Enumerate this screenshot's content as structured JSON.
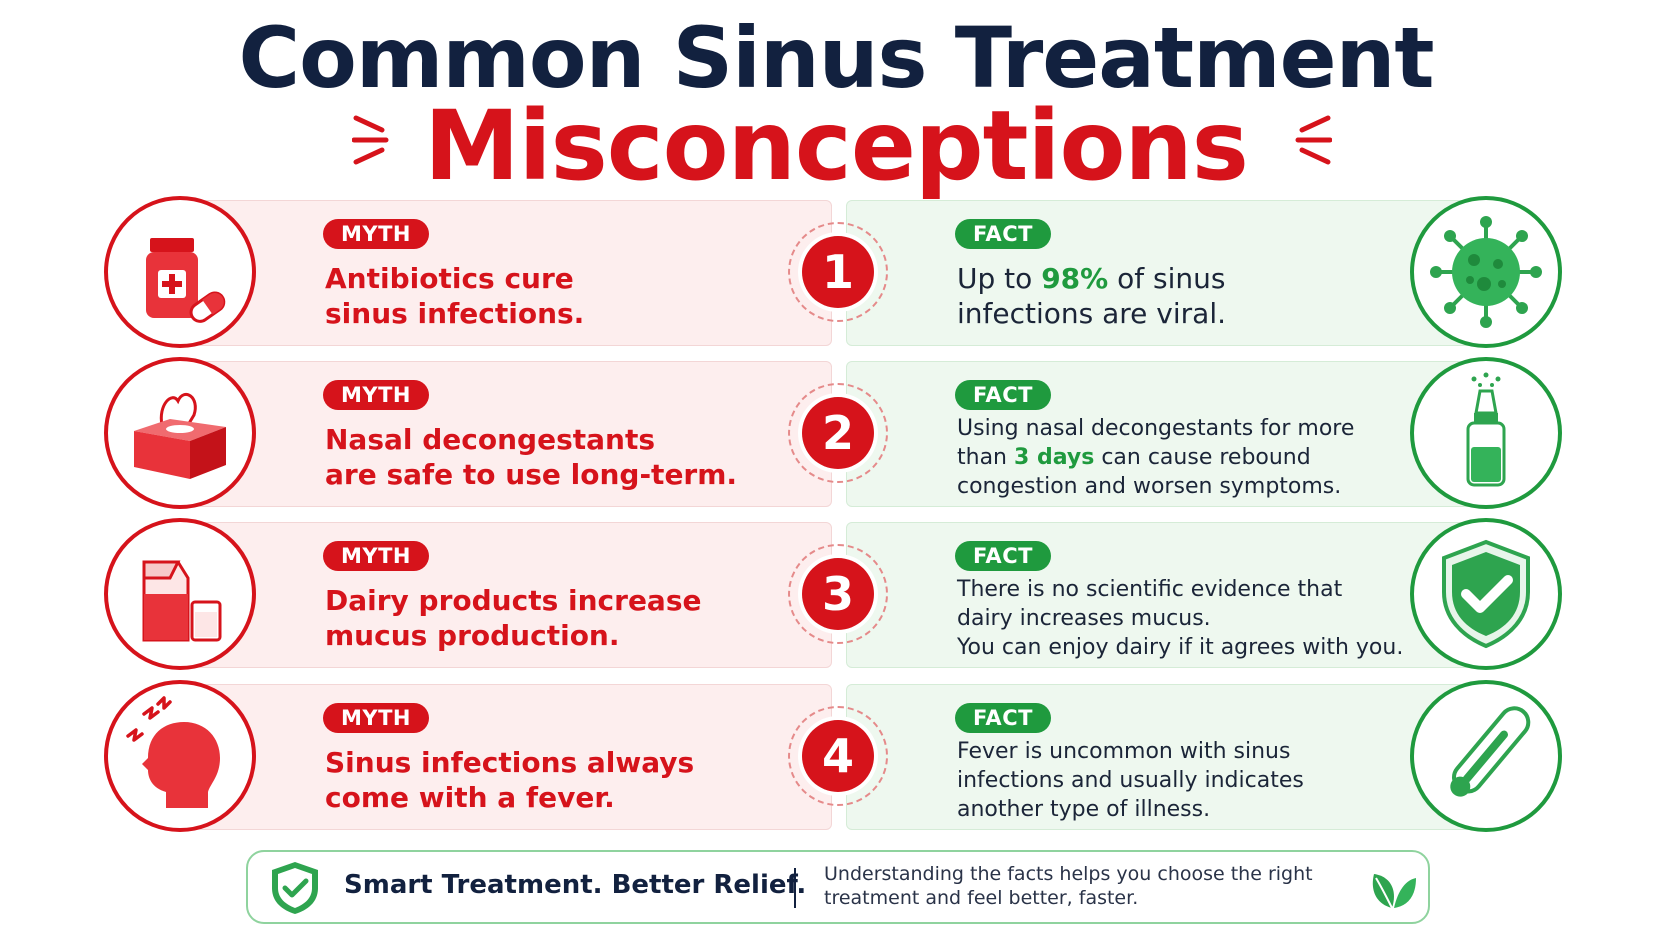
{
  "title": {
    "line1": "Common Sinus Treatment",
    "line2": "Misconceptions"
  },
  "colors": {
    "myth_red": "#d6131b",
    "fact_green": "#1f9a3e",
    "navy": "#12213f"
  },
  "rows": [
    {
      "number": "1",
      "myth_label": "MYTH",
      "myth_line1": "Antibiotics cure",
      "myth_line2": "sinus infections.",
      "myth_icon": "medicine-bottle-icon",
      "fact_label": "FACT",
      "fact_pre": "Up to ",
      "fact_highlight": "98%",
      "fact_post": " of sinus",
      "fact_line2": "infections are viral.",
      "fact_icon": "virus-icon"
    },
    {
      "number": "2",
      "myth_label": "MYTH",
      "myth_line1": "Nasal decongestants",
      "myth_line2": "are safe to use long-term.",
      "myth_icon": "tissue-box-icon",
      "fact_label": "FACT",
      "fact_line1": "Using nasal decongestants for more",
      "fact_pre": "than ",
      "fact_highlight": "3 days",
      "fact_post": " can cause rebound",
      "fact_line3": "congestion and worsen symptoms.",
      "fact_icon": "nasal-spray-icon"
    },
    {
      "number": "3",
      "myth_label": "MYTH",
      "myth_line1": "Dairy products increase",
      "myth_line2": "mucus production.",
      "myth_icon": "milk-carton-icon",
      "fact_label": "FACT",
      "fact_line1": "There is no scientific evidence that",
      "fact_line2": "dairy increases mucus.",
      "fact_line3": "You can enjoy dairy if it agrees with you.",
      "fact_icon": "shield-check-icon"
    },
    {
      "number": "4",
      "myth_label": "MYTH",
      "myth_line1": "Sinus infections always",
      "myth_line2": "come with a fever.",
      "myth_icon": "headache-icon",
      "fact_label": "FACT",
      "fact_line1": "Fever is uncommon with sinus",
      "fact_line2": "infections and usually indicates",
      "fact_line3": "another type of illness.",
      "fact_icon": "thermometer-icon"
    }
  ],
  "footer": {
    "title": "Smart Treatment. Better Relief.",
    "text_line1": "Understanding the facts helps you choose the right",
    "text_line2": "treatment and feel better, faster.",
    "left_icon": "shield-check-icon",
    "right_icon": "leaves-icon"
  }
}
